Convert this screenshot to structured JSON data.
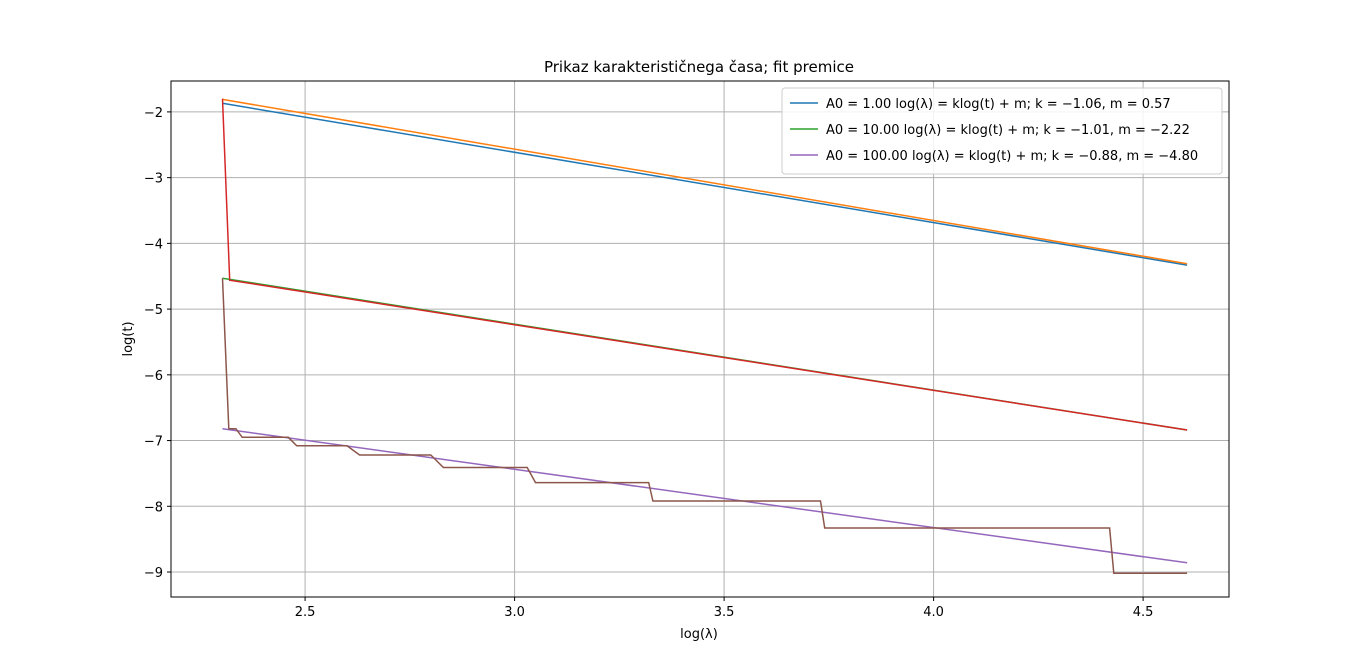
{
  "chart_data": {
    "type": "line",
    "title": "Prikaz karakterističnega časa; fit premice",
    "xlabel": "log(λ)",
    "ylabel": "log(t)",
    "xlim": [
      2.18,
      4.705
    ],
    "ylim": [
      -9.38,
      -1.53
    ],
    "xticks": [
      2.5,
      3.0,
      3.5,
      4.0,
      4.5
    ],
    "xtick_labels": [
      "2.5",
      "3.0",
      "3.5",
      "4.0",
      "4.5"
    ],
    "yticks": [
      -2,
      -3,
      -4,
      -5,
      -6,
      -7,
      -8,
      -9
    ],
    "ytick_labels": [
      "−2",
      "−3",
      "−4",
      "−5",
      "−6",
      "−7",
      "−8",
      "−9"
    ],
    "grid": true,
    "legend_position": "upper-right",
    "series": [
      {
        "name": "A0 = 1.00 log(λ) = klog(t) + m; k = −1.06, m = 0.57",
        "legend": true,
        "color": "#1f77b4",
        "kind": "line",
        "x": [
          2.303,
          4.605
        ],
        "y": [
          -1.87,
          -4.33
        ]
      },
      {
        "name": "A0 = 10.00 log(λ) = klog(t) + m; k = −1.01, m = −2.22",
        "legend": true,
        "color": "#2ca02c",
        "kind": "line",
        "x": [
          2.303,
          4.605
        ],
        "y": [
          -4.53,
          -6.84
        ]
      },
      {
        "name": "A0 = 100.00 log(λ) = klog(t) + m; k = −0.88, m = −4.80",
        "legend": true,
        "color": "#9467bd",
        "kind": "line",
        "x": [
          2.303,
          4.605
        ],
        "y": [
          -6.82,
          -8.86
        ]
      },
      {
        "legend": false,
        "color": "#ff7f0e",
        "kind": "line",
        "x": [
          2.303,
          4.605
        ],
        "y": [
          -1.81,
          -4.31
        ]
      },
      {
        "legend": false,
        "color": "#d62728",
        "kind": "step",
        "x": [
          2.303,
          2.32,
          4.605
        ],
        "y": [
          -1.8,
          -4.56,
          -6.84
        ]
      },
      {
        "legend": false,
        "color": "#8c564b",
        "kind": "step",
        "x": [
          2.303,
          2.318,
          2.335,
          2.35,
          2.46,
          2.48,
          2.6,
          2.63,
          2.8,
          2.83,
          3.03,
          3.05,
          3.32,
          3.33,
          3.73,
          3.74,
          4.42,
          4.43,
          4.605
        ],
        "y": [
          -4.53,
          -6.82,
          -6.82,
          -6.95,
          -6.95,
          -7.08,
          -7.08,
          -7.22,
          -7.22,
          -7.41,
          -7.41,
          -7.64,
          -7.64,
          -7.92,
          -7.92,
          -8.33,
          -8.33,
          -9.02,
          -9.02
        ]
      }
    ]
  }
}
